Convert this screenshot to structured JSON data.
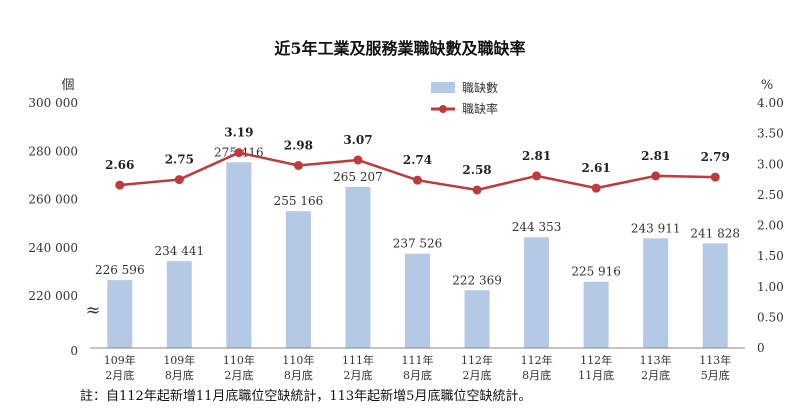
{
  "chart_data": {
    "type": "bar+line",
    "title": "近5年工業及服務業職缺數及職缺率",
    "categories": [
      [
        "109年",
        "2月底"
      ],
      [
        "109年",
        "8月底"
      ],
      [
        "110年",
        "2月底"
      ],
      [
        "110年",
        "8月底"
      ],
      [
        "111年",
        "2月底"
      ],
      [
        "111年",
        "8月底"
      ],
      [
        "112年",
        "2月底"
      ],
      [
        "112年",
        "8月底"
      ],
      [
        "112年",
        "11月底"
      ],
      [
        "113年",
        "2月底"
      ],
      [
        "113年",
        "5月底"
      ]
    ],
    "series": [
      {
        "name": "職缺數",
        "type": "bar",
        "axis": "left",
        "color": "#b4c9e6",
        "values": [
          226596,
          234441,
          275416,
          255166,
          265207,
          237526,
          222369,
          244353,
          225916,
          243911,
          241828
        ],
        "labels": [
          "226 596",
          "234 441",
          "275 416",
          "255 166",
          "265 207",
          "237 526",
          "222 369",
          "244 353",
          "225 916",
          "243 911",
          "241 828"
        ]
      },
      {
        "name": "職缺率",
        "type": "line",
        "axis": "right",
        "color": "#c0393b",
        "values": [
          2.66,
          2.75,
          3.19,
          2.98,
          3.07,
          2.74,
          2.58,
          2.81,
          2.61,
          2.81,
          2.79
        ],
        "labels": [
          "2.66",
          "2.75",
          "3.19",
          "2.98",
          "3.07",
          "2.74",
          "2.58",
          "2.81",
          "2.61",
          "2.81",
          "2.79"
        ]
      }
    ],
    "left_axis": {
      "unit": "個",
      "ylim": [
        200000,
        300000
      ],
      "ticks": [
        220000,
        240000,
        260000,
        280000,
        300000
      ],
      "tick_labels": [
        "220 000",
        "240 000",
        "260 000",
        "280 000",
        "300 000"
      ],
      "zero_label": "0",
      "break_symbol": "≈"
    },
    "right_axis": {
      "unit": "%",
      "ylim": [
        0,
        4
      ],
      "ticks": [
        0,
        0.5,
        1,
        1.5,
        2,
        2.5,
        3,
        3.5,
        4
      ],
      "tick_labels": [
        "0",
        "0.50",
        "1.00",
        "1.50",
        "2.00",
        "2.50",
        "3.00",
        "3.50",
        "4.00"
      ]
    },
    "grid": false,
    "legend_position": "top-center",
    "note": "註：自112年起新增11月底職位空缺統計，113年起新增5月底職位空缺統計。"
  }
}
